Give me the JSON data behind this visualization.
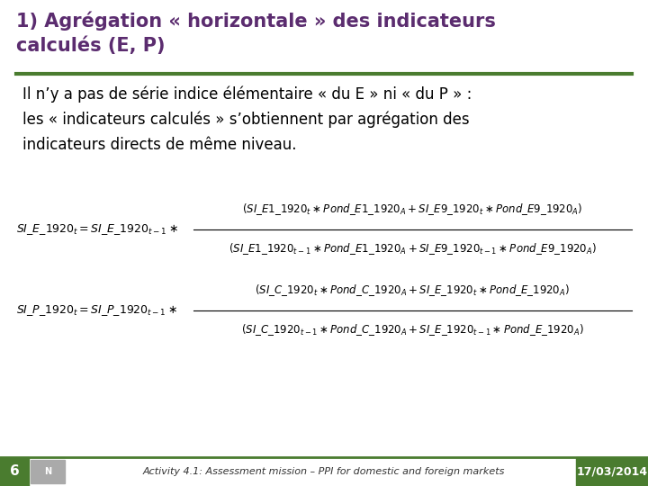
{
  "title_line1": "1) Agrégation « horizontale » des indicateurs",
  "title_line2": "calculés (E, P)",
  "title_color": "#5b2c6f",
  "title_fontsize": 15,
  "separator_color": "#4a7c2f",
  "body_text": "Il n’y a pas de série indice élémentaire « du E » ni « du P » :\nles « indicateurs calculés » s’obtiennent par agrégation des\nindicateurs directs de même niveau.",
  "body_fontsize": 12,
  "body_color": "#000000",
  "formula_color": "#000000",
  "formula_fontsize": 9,
  "footer_left_num": "6",
  "footer_center": "Activity 4.1: Assessment mission – PPI for domestic and foreign markets",
  "footer_right": "17/03/2014",
  "separator_green": "#4a7c2f",
  "bg_color": "#ffffff"
}
